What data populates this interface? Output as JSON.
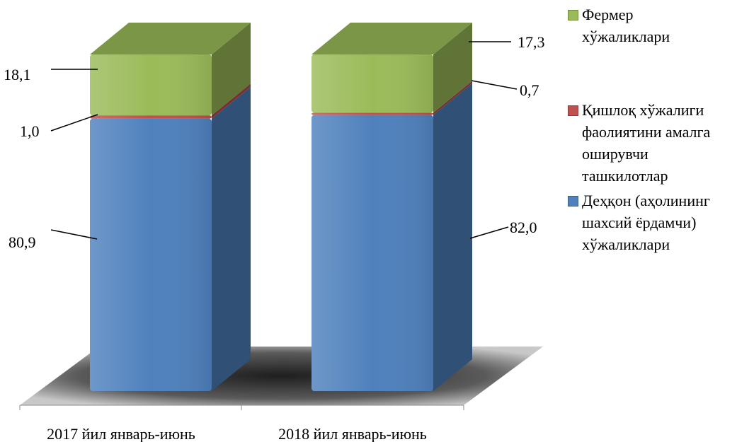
{
  "chart_data": {
    "type": "bar",
    "stacked": true,
    "three_d": true,
    "categories": [
      "2017 йил январь-июнь",
      "2018 йил январь-июнь"
    ],
    "series": [
      {
        "name": "Деҳқон (аҳолининг шахсий ёрдамчи) хўжаликлари",
        "values": [
          80.9,
          82.0
        ],
        "color": "#4f81bd",
        "labels": [
          "80,9",
          "82,0"
        ]
      },
      {
        "name": "Қишлоқ хўжалиги фаолиятини амалга оширувчи ташкилотлар",
        "values": [
          1.0,
          0.7
        ],
        "color": "#c0504d",
        "labels": [
          "1,0",
          "0,7"
        ]
      },
      {
        "name": "Фермер хўжаликлари",
        "values": [
          18.1,
          17.3
        ],
        "color": "#9bbb59",
        "labels": [
          "18,1",
          "17,3"
        ]
      }
    ],
    "ylim": [
      0,
      100
    ],
    "grid": false,
    "legend_position": "right",
    "title": "",
    "xlabel": "",
    "ylabel": ""
  }
}
